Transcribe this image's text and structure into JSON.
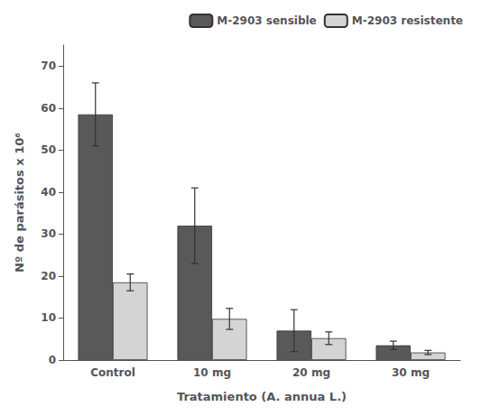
{
  "chart_data": {
    "type": "bar",
    "xlabel": "Tratamiento (A. annua L.)",
    "ylabel": "Nº de parásitos x 10⁶",
    "categories": [
      "Control",
      "10 mg",
      "20 mg",
      "30 mg"
    ],
    "series": [
      {
        "name": "M-2903 sensible",
        "color": "#595959",
        "values": [
          58.5,
          32.0,
          7.0,
          3.5
        ],
        "errors": [
          7.5,
          9.0,
          5.0,
          1.0
        ]
      },
      {
        "name": "M-2903 resistente",
        "color": "#d4d4d4",
        "values": [
          18.5,
          9.8,
          5.2,
          1.8
        ],
        "errors": [
          2.0,
          2.5,
          1.5,
          0.5
        ]
      }
    ],
    "ylim": [
      0,
      75
    ],
    "yticks": [
      0,
      10,
      20,
      30,
      40,
      50,
      60,
      70
    ],
    "grid": false,
    "legend": "upper right"
  }
}
